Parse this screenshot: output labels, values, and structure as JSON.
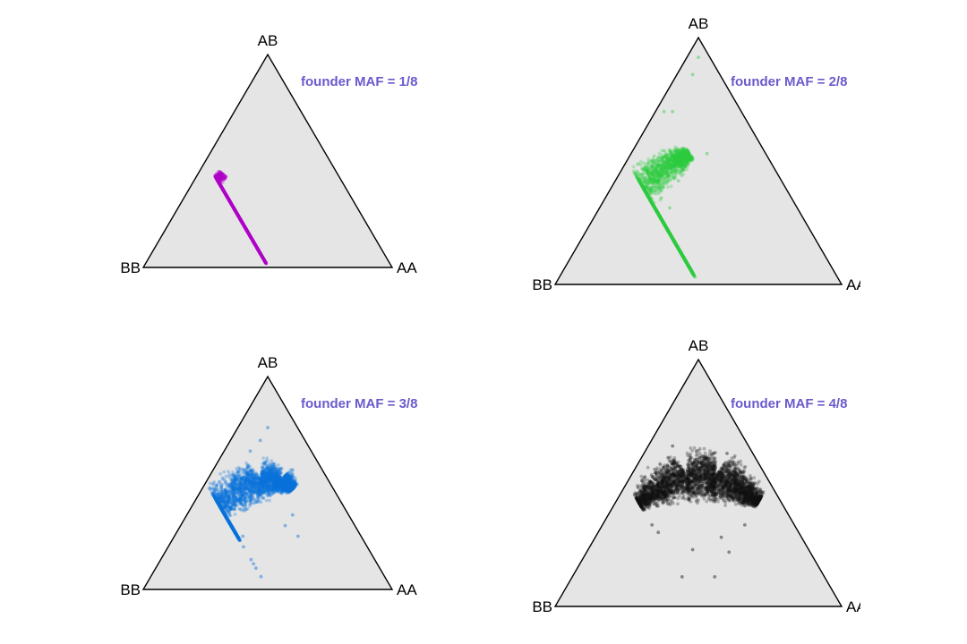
{
  "chart_data": [
    {
      "type": "scatter",
      "title": "founder MAF = 1/8",
      "corner_labels": {
        "top": "AB",
        "left": "BB",
        "right": "AA"
      },
      "point_color": "#b000c8",
      "cloud": {
        "spine": [
          [
            0.02,
            0.02
          ],
          [
            0.1,
            0.14
          ],
          [
            0.18,
            0.26
          ],
          [
            0.26,
            0.38
          ],
          [
            0.32,
            0.44
          ]
        ],
        "halfwidth": [
          0.01,
          0.018,
          0.022,
          0.022,
          0.018
        ],
        "n": 1400
      },
      "outliers": [
        [
          0.24,
          0.16
        ],
        [
          0.2,
          0.14
        ],
        [
          0.18,
          0.25
        ],
        [
          0.3,
          0.34
        ]
      ]
    },
    {
      "type": "scatter",
      "title": "founder MAF = 2/8",
      "corner_labels": {
        "top": "AB",
        "left": "BB",
        "right": "AA"
      },
      "point_color": "#2ecc40",
      "cloud": {
        "spine": [
          [
            0.03,
            0.04
          ],
          [
            0.12,
            0.17
          ],
          [
            0.22,
            0.3
          ],
          [
            0.33,
            0.43
          ],
          [
            0.42,
            0.5
          ],
          [
            0.47,
            0.53
          ]
        ],
        "halfwidth": [
          0.015,
          0.04,
          0.055,
          0.055,
          0.04,
          0.02
        ],
        "n": 3000
      },
      "outliers": [
        [
          0.5,
          0.92
        ],
        [
          0.48,
          0.85
        ],
        [
          0.38,
          0.7
        ],
        [
          0.41,
          0.7
        ],
        [
          0.53,
          0.53
        ],
        [
          0.37,
          0.35
        ],
        [
          0.4,
          0.31
        ],
        [
          0.35,
          0.28
        ],
        [
          0.21,
          0.18
        ],
        [
          0.3,
          0.2
        ],
        [
          0.25,
          0.12
        ],
        [
          0.14,
          0.05
        ],
        [
          0.1,
          0.03
        ],
        [
          0.43,
          0.42
        ]
      ]
    },
    {
      "type": "scatter",
      "title": "founder MAF = 3/8",
      "corner_labels": {
        "top": "AB",
        "left": "BB",
        "right": "AA"
      },
      "point_color": "#0a74da",
      "cloud": {
        "spine": [
          [
            0.15,
            0.24
          ],
          [
            0.25,
            0.35
          ],
          [
            0.36,
            0.45
          ],
          [
            0.47,
            0.52
          ],
          [
            0.55,
            0.51
          ],
          [
            0.6,
            0.47
          ]
        ],
        "halfwidth": [
          0.02,
          0.05,
          0.07,
          0.07,
          0.05,
          0.02
        ],
        "n": 3500
      },
      "outliers": [
        [
          0.5,
          0.76
        ],
        [
          0.47,
          0.7
        ],
        [
          0.43,
          0.65
        ],
        [
          0.6,
          0.35
        ],
        [
          0.65,
          0.25
        ],
        [
          0.35,
          0.2
        ],
        [
          0.28,
          0.14
        ],
        [
          0.2,
          0.1
        ],
        [
          0.45,
          0.06
        ],
        [
          0.57,
          0.3
        ],
        [
          0.15,
          0.12
        ],
        [
          0.25,
          0.24
        ],
        [
          0.4,
          0.25
        ]
      ]
    },
    {
      "type": "scatter",
      "title": "founder MAF = 4/8",
      "corner_labels": {
        "top": "AB",
        "left": "BB",
        "right": "AA"
      },
      "point_color": "#111111",
      "cloud": {
        "spine": [
          [
            0.28,
            0.41
          ],
          [
            0.36,
            0.48
          ],
          [
            0.46,
            0.53
          ],
          [
            0.56,
            0.53
          ],
          [
            0.64,
            0.48
          ],
          [
            0.72,
            0.42
          ]
        ],
        "halfwidth": [
          0.02,
          0.055,
          0.075,
          0.075,
          0.055,
          0.02
        ],
        "n": 3500
      },
      "outliers": [
        [
          0.41,
          0.65
        ],
        [
          0.6,
          0.62
        ],
        [
          0.23,
          0.33
        ],
        [
          0.76,
          0.33
        ],
        [
          0.48,
          0.23
        ],
        [
          0.74,
          0.22
        ],
        [
          0.22,
          0.12
        ],
        [
          0.65,
          0.12
        ],
        [
          0.36,
          0.3
        ],
        [
          0.58,
          0.28
        ]
      ]
    }
  ]
}
